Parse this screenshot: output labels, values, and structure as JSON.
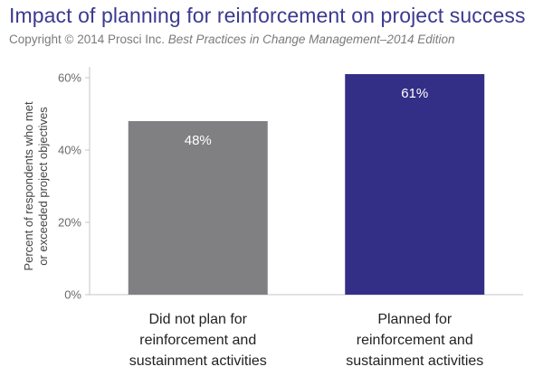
{
  "title": "Impact of planning for reinforcement on project success",
  "subtitle": {
    "prefix": "Copyright © 2014 Prosci Inc.",
    "italic": "Best Practices in Change Management–2014 Edition"
  },
  "chart_data": {
    "type": "bar",
    "categories": [
      [
        "Did not plan for",
        "reinforcement and",
        "sustainment activities"
      ],
      [
        "Planned for",
        "reinforcement and",
        "sustainment activities"
      ]
    ],
    "values": [
      48,
      61
    ],
    "data_labels": [
      "48%",
      "61%"
    ],
    "colors": [
      "#808083",
      "#332f87"
    ],
    "ylabel": [
      "Percent of respondents who met",
      "or exceeded project objectives"
    ],
    "ylim": [
      0,
      60
    ],
    "yticks": [
      0,
      20,
      40,
      60
    ],
    "ytick_labels": [
      "0%",
      "20%",
      "40%",
      "60%"
    ],
    "grid": false,
    "legend": "none"
  }
}
